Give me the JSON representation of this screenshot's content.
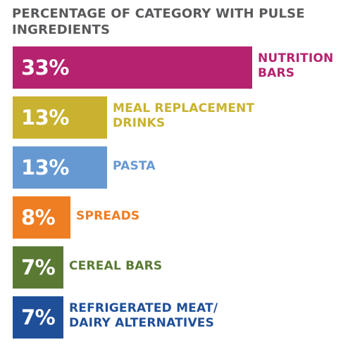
{
  "chart_data": {
    "type": "bar",
    "orientation": "horizontal",
    "title": "PERCENTAGE OF CATEGORY WITH PULSE INGREDIENTS",
    "categories": [
      "NUTRITION BARS",
      "MEAL REPLACEMENT DRINKS",
      "PASTA",
      "SPREADS",
      "CEREAL BARS",
      "REFRIGERATED MEAT/ DAIRY ALTERNATIVES"
    ],
    "values": [
      33,
      13,
      13,
      8,
      7,
      7
    ],
    "value_labels": [
      "33%",
      "13%",
      "13%",
      "8%",
      "7%",
      "7%"
    ],
    "colors": [
      "#b5236f",
      "#c8b22f",
      "#6699d1",
      "#ef7d22",
      "#5a7a33",
      "#1f4f99"
    ],
    "xlim": [
      0,
      33
    ],
    "grid": false,
    "legend": "none"
  }
}
